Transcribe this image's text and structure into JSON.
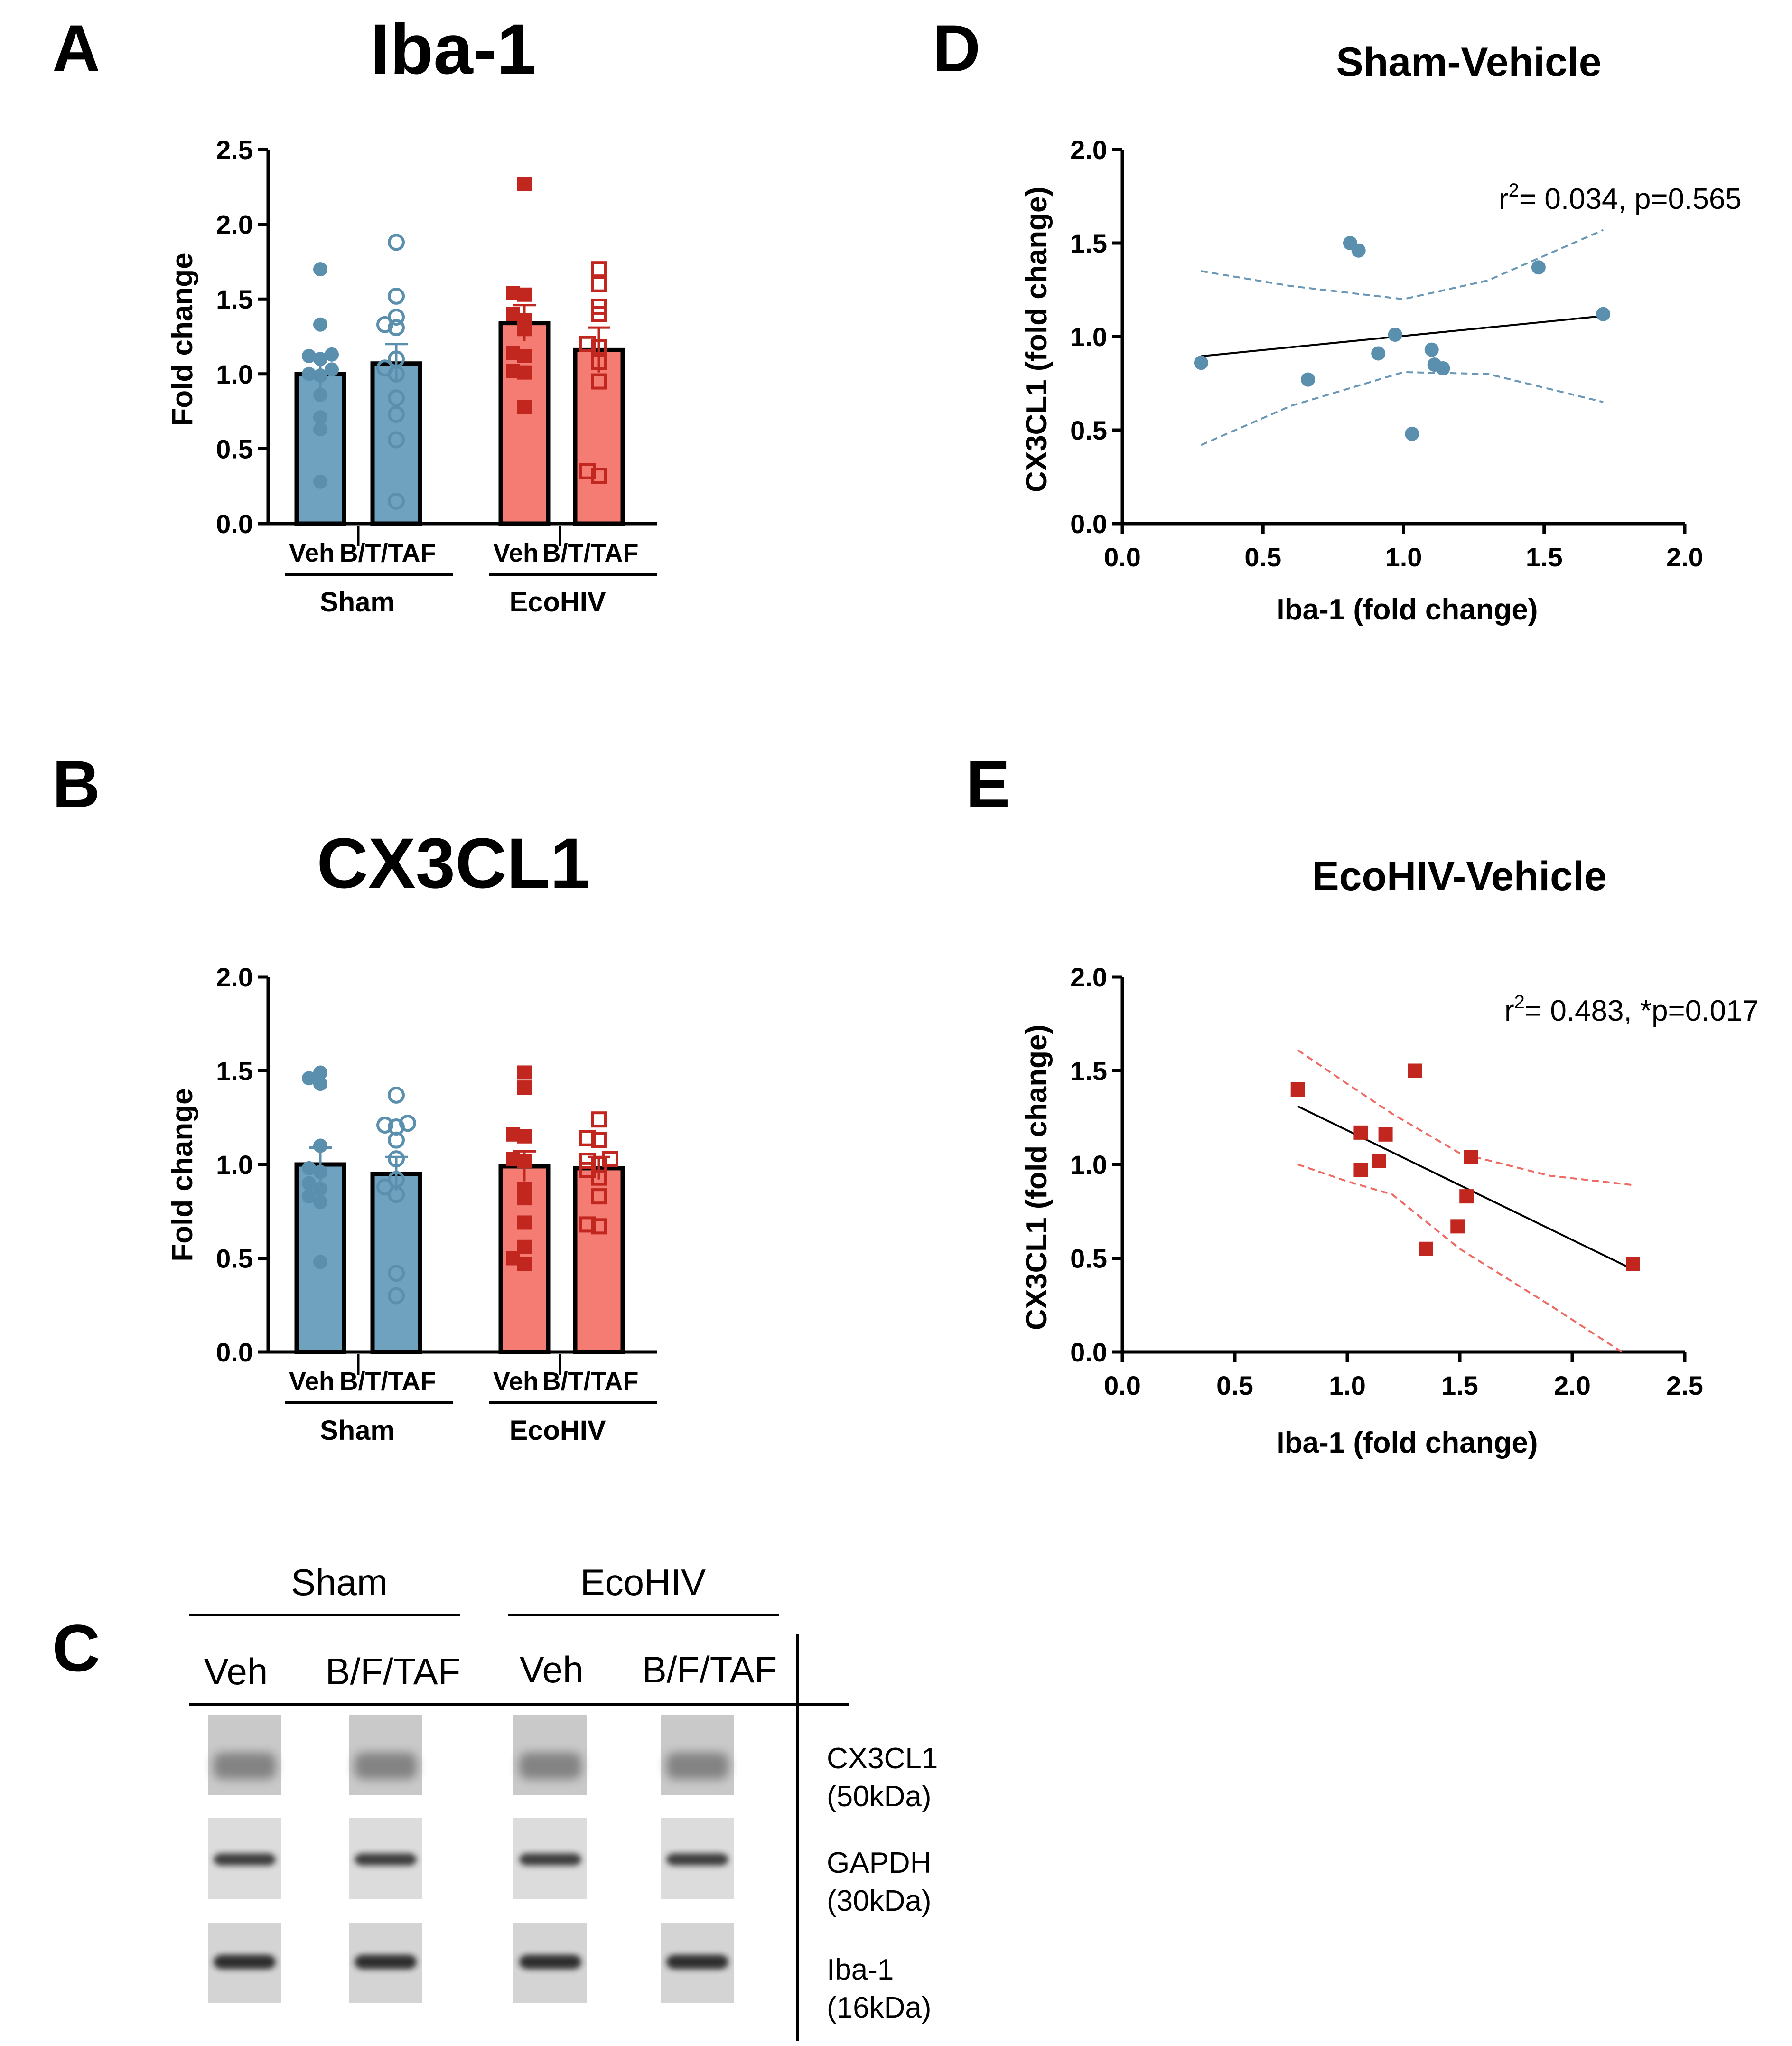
{
  "panel_labels": {
    "a": "A",
    "b": "B",
    "c": "C",
    "d": "D",
    "e": "E"
  },
  "colors": {
    "sham": "#6fa2be",
    "sham_dark": "#5b8fae",
    "eco_bar": "#f47c72",
    "eco_marker": "#c2271f",
    "ci_sham": "#6a97b6",
    "ci_eco": "#ee6a62"
  },
  "chart_data": [
    {
      "id": "A",
      "type": "bar",
      "title": "Iba-1",
      "ylabel": "Fold change",
      "ylim": [
        0,
        2.5
      ],
      "yticks": [
        "0.0",
        "0.5",
        "1.0",
        "1.5",
        "2.0",
        "2.5"
      ],
      "categories": [
        "Veh",
        "B/T/TAF",
        "Veh",
        "B/T/TAF"
      ],
      "groups": [
        "Sham",
        "EcoHIV"
      ],
      "means": [
        1.0,
        1.07,
        1.34,
        1.16
      ],
      "sem": [
        0.11,
        0.13,
        0.12,
        0.15
      ],
      "points": [
        [
          1.7,
          1.33,
          1.13,
          1.12,
          1.1,
          1.03,
          1.0,
          0.99,
          0.86,
          0.71,
          0.63,
          0.28
        ],
        [
          1.88,
          1.52,
          1.38,
          1.33,
          1.31,
          1.1,
          1.04,
          1.0,
          0.84,
          0.73,
          0.56,
          0.15
        ],
        [
          2.27,
          1.54,
          1.53,
          1.4,
          1.36,
          1.3,
          1.14,
          1.12,
          1.02,
          1.01,
          0.78
        ],
        [
          1.7,
          1.6,
          1.45,
          1.4,
          1.2,
          1.18,
          1.08,
          0.95,
          0.35,
          0.32
        ]
      ]
    },
    {
      "id": "B",
      "type": "bar",
      "title": "CX3CL1",
      "ylabel": "Fold change",
      "ylim": [
        0,
        2.0
      ],
      "yticks": [
        "0.0",
        "0.5",
        "1.0",
        "1.5",
        "2.0"
      ],
      "categories": [
        "Veh",
        "B/T/TAF",
        "Veh",
        "B/T/TAF"
      ],
      "groups": [
        "Sham",
        "EcoHIV"
      ],
      "means": [
        1.0,
        0.95,
        0.99,
        0.98
      ],
      "sem": [
        0.09,
        0.09,
        0.08,
        0.06
      ],
      "points": [
        [
          1.49,
          1.46,
          1.43,
          1.1,
          0.98,
          0.96,
          0.9,
          0.87,
          0.83,
          0.8,
          0.48
        ],
        [
          1.37,
          1.22,
          1.21,
          1.2,
          1.13,
          1.03,
          0.92,
          0.88,
          0.84,
          0.42,
          0.3
        ],
        [
          1.49,
          1.41,
          1.16,
          1.15,
          1.03,
          1.02,
          0.87,
          0.82,
          0.69,
          0.56,
          0.5,
          0.47
        ],
        [
          1.24,
          1.14,
          1.13,
          1.03,
          1.02,
          1.0,
          0.97,
          0.93,
          0.83,
          0.68,
          0.67
        ]
      ]
    },
    {
      "id": "D",
      "type": "scatter",
      "title": "Sham-Vehicle",
      "xlabel": "Iba-1 (fold change)",
      "ylabel": "CX3CL1 (fold change)",
      "xlim": [
        0,
        2.0
      ],
      "ylim": [
        0,
        2.0
      ],
      "xticks": [
        "0.0",
        "0.5",
        "1.0",
        "1.5",
        "2.0"
      ],
      "yticks": [
        "0.0",
        "0.5",
        "1.0",
        "1.5",
        "2.0"
      ],
      "annotation_r": "r",
      "annotation_sup": "2",
      "annotation_rest": "= 0.034, p=0.565",
      "x": [
        0.28,
        0.66,
        0.81,
        0.84,
        0.91,
        0.97,
        1.03,
        1.1,
        1.11,
        1.14,
        1.48,
        1.71
      ],
      "y": [
        0.86,
        0.77,
        1.5,
        1.46,
        0.91,
        1.01,
        0.48,
        0.93,
        0.85,
        0.83,
        1.37,
        1.12
      ],
      "fit": [
        [
          0.28,
          0.895
        ],
        [
          1.71,
          1.11
        ]
      ],
      "ci_upper": [
        [
          0.28,
          1.35
        ],
        [
          0.6,
          1.27
        ],
        [
          1.0,
          1.2
        ],
        [
          1.3,
          1.3
        ],
        [
          1.71,
          1.57
        ]
      ],
      "ci_lower": [
        [
          0.28,
          0.42
        ],
        [
          0.6,
          0.63
        ],
        [
          1.0,
          0.81
        ],
        [
          1.3,
          0.8
        ],
        [
          1.71,
          0.65
        ]
      ]
    },
    {
      "id": "E",
      "type": "scatter",
      "title": "EcoHIV-Vehicle",
      "xlabel": "Iba-1 (fold change)",
      "ylabel": "CX3CL1 (fold change)",
      "xlim": [
        0,
        2.5
      ],
      "ylim": [
        0,
        2.0
      ],
      "xticks": [
        "0.0",
        "0.5",
        "1.0",
        "1.5",
        "2.0",
        "2.5"
      ],
      "yticks": [
        "0.0",
        "0.5",
        "1.0",
        "1.5",
        "2.0"
      ],
      "annotation_r": "r",
      "annotation_sup": "2",
      "annotation_rest": "= 0.483, *p=0.017",
      "x": [
        0.78,
        1.06,
        1.06,
        1.14,
        1.17,
        1.3,
        1.35,
        1.49,
        1.53,
        1.55,
        2.27
      ],
      "y": [
        1.4,
        1.17,
        0.97,
        1.02,
        1.16,
        1.5,
        0.55,
        0.67,
        0.83,
        1.04,
        0.47
      ],
      "fit": [
        [
          0.78,
          1.31
        ],
        [
          2.27,
          0.44
        ]
      ],
      "ci_upper": [
        [
          0.78,
          1.61
        ],
        [
          1.0,
          1.43
        ],
        [
          1.2,
          1.27
        ],
        [
          1.5,
          1.06
        ],
        [
          1.9,
          0.94
        ],
        [
          2.27,
          0.89
        ]
      ],
      "ci_lower": [
        [
          0.78,
          1.0
        ],
        [
          1.0,
          0.91
        ],
        [
          1.2,
          0.84
        ],
        [
          1.5,
          0.55
        ],
        [
          1.9,
          0.25
        ],
        [
          2.22,
          0.0
        ]
      ]
    }
  ],
  "blot": {
    "groups": [
      "Sham",
      "EcoHIV"
    ],
    "lanes": [
      "Veh",
      "B/F/TAF",
      "Veh",
      "B/F/TAF"
    ],
    "rows": [
      {
        "name": "CX3CL1",
        "size": "(50kDa)"
      },
      {
        "name": "GAPDH",
        "size": "(30kDa)"
      },
      {
        "name": "Iba-1",
        "size": "(16kDa)"
      }
    ]
  }
}
